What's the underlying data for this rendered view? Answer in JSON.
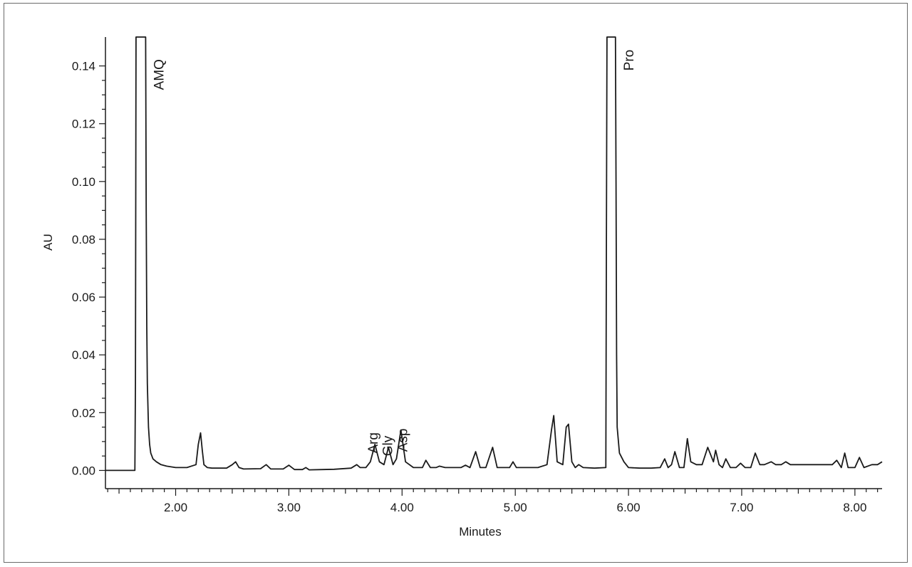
{
  "chart_data": {
    "type": "line",
    "xlabel": "Minutes",
    "ylabel": "AU",
    "xlim": [
      1.38,
      8.24
    ],
    "ylim": [
      -0.0063,
      0.15
    ],
    "x_ticks": [
      "2.00",
      "3.00",
      "4.00",
      "5.00",
      "6.00",
      "7.00",
      "8.00"
    ],
    "y_ticks": [
      "0.00",
      "0.02",
      "0.04",
      "0.06",
      "0.08",
      "0.10",
      "0.12",
      "0.14"
    ],
    "grid": false,
    "legend": "none",
    "series": [
      {
        "x": [
          1.38,
          1.62,
          1.64,
          1.645,
          1.65,
          1.655,
          1.66,
          1.72,
          1.73,
          1.735,
          1.74,
          1.745,
          1.75,
          1.76,
          1.77,
          1.78,
          1.8,
          1.83,
          1.87,
          1.92,
          2.0,
          2.1,
          2.18,
          2.2,
          2.22,
          2.235,
          2.25,
          2.28,
          2.32,
          2.45,
          2.5,
          2.53,
          2.56,
          2.6,
          2.75,
          2.8,
          2.84,
          2.95,
          3.0,
          3.02,
          3.05,
          3.12,
          3.15,
          3.18,
          3.3,
          3.4,
          3.55,
          3.6,
          3.63,
          3.68,
          3.72,
          3.76,
          3.8,
          3.84,
          3.88,
          3.92,
          3.95,
          3.99,
          4.03,
          4.1,
          4.18,
          4.21,
          4.25,
          4.3,
          4.33,
          4.38,
          4.45,
          4.52,
          4.56,
          4.6,
          4.65,
          4.69,
          4.74,
          4.8,
          4.84,
          4.9,
          4.95,
          4.98,
          5.01,
          5.1,
          5.14,
          5.2,
          5.28,
          5.32,
          5.34,
          5.37,
          5.42,
          5.45,
          5.47,
          5.5,
          5.53,
          5.56,
          5.6,
          5.7,
          5.8,
          5.805,
          5.81,
          5.815,
          5.82,
          5.88,
          5.885,
          5.89,
          5.895,
          5.9,
          5.92,
          5.96,
          6.0,
          6.1,
          6.2,
          6.28,
          6.32,
          6.35,
          6.38,
          6.41,
          6.45,
          6.49,
          6.52,
          6.55,
          6.6,
          6.65,
          6.7,
          6.72,
          6.75,
          6.77,
          6.8,
          6.83,
          6.86,
          6.9,
          6.95,
          6.99,
          7.03,
          7.08,
          7.12,
          7.16,
          7.2,
          7.26,
          7.3,
          7.35,
          7.39,
          7.43,
          7.5,
          7.6,
          7.7,
          7.8,
          7.84,
          7.88,
          7.91,
          7.94,
          8.0,
          8.04,
          8.08,
          8.15,
          8.2,
          8.24
        ],
        "y": [
          0.0,
          0.0,
          0.0,
          0.03,
          0.15,
          0.15,
          0.15,
          0.15,
          0.15,
          0.15,
          0.09,
          0.05,
          0.03,
          0.015,
          0.009,
          0.006,
          0.004,
          0.003,
          0.002,
          0.0015,
          0.001,
          0.001,
          0.002,
          0.009,
          0.013,
          0.007,
          0.002,
          0.001,
          0.0008,
          0.0008,
          0.002,
          0.003,
          0.001,
          0.0005,
          0.0006,
          0.002,
          0.0005,
          0.0005,
          0.0018,
          0.0012,
          0.0003,
          0.0003,
          0.001,
          0.0002,
          0.0003,
          0.0004,
          0.0008,
          0.002,
          0.001,
          0.001,
          0.003,
          0.009,
          0.003,
          0.002,
          0.008,
          0.002,
          0.004,
          0.014,
          0.003,
          0.001,
          0.001,
          0.0035,
          0.001,
          0.001,
          0.0015,
          0.001,
          0.001,
          0.001,
          0.0018,
          0.001,
          0.0065,
          0.001,
          0.001,
          0.008,
          0.001,
          0.001,
          0.001,
          0.003,
          0.001,
          0.001,
          0.001,
          0.001,
          0.002,
          0.014,
          0.019,
          0.003,
          0.002,
          0.015,
          0.016,
          0.003,
          0.001,
          0.002,
          0.001,
          0.0008,
          0.001,
          0.08,
          0.15,
          0.15,
          0.15,
          0.15,
          0.15,
          0.1,
          0.04,
          0.015,
          0.006,
          0.003,
          0.001,
          0.0008,
          0.0008,
          0.001,
          0.004,
          0.001,
          0.002,
          0.0065,
          0.001,
          0.001,
          0.011,
          0.003,
          0.002,
          0.002,
          0.008,
          0.006,
          0.003,
          0.007,
          0.002,
          0.001,
          0.004,
          0.001,
          0.001,
          0.0025,
          0.001,
          0.001,
          0.006,
          0.002,
          0.002,
          0.003,
          0.002,
          0.002,
          0.003,
          0.002,
          0.002,
          0.002,
          0.002,
          0.002,
          0.0035,
          0.001,
          0.006,
          0.001,
          0.001,
          0.0045,
          0.001,
          0.002,
          0.002,
          0.003
        ]
      }
    ],
    "annotations": [
      {
        "text": "AMQ",
        "x": 1.85,
        "y": 0.137
      },
      {
        "text": "Arg",
        "x": 3.74,
        "y": 0.0095
      },
      {
        "text": "Gly",
        "x": 3.87,
        "y": 0.0085
      },
      {
        "text": "Asp",
        "x": 4.0,
        "y": 0.0105
      },
      {
        "text": "Pro",
        "x": 6.0,
        "y": 0.142
      }
    ]
  }
}
